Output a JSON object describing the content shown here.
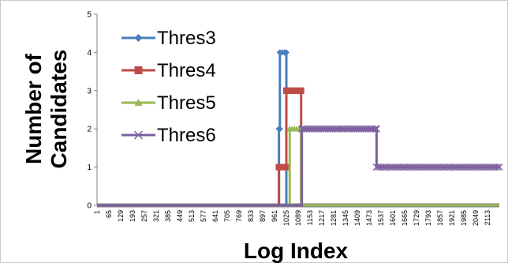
{
  "chart_data": {
    "type": "line",
    "xlabel": "Log Index",
    "ylabel": "Number of Candidates",
    "ylim": [
      0,
      5
    ],
    "xlim": [
      1,
      2177
    ],
    "yticks": [
      0,
      1,
      2,
      3,
      4,
      5
    ],
    "xticks": [
      "1",
      "65",
      "129",
      "193",
      "257",
      "321",
      "385",
      "449",
      "513",
      "577",
      "641",
      "705",
      "769",
      "833",
      "897",
      "961",
      "1025",
      "1089",
      "1153",
      "1217",
      "1281",
      "1345",
      "1409",
      "1473",
      "1537",
      "1601",
      "1665",
      "1729",
      "1793",
      "1857",
      "1921",
      "1985",
      "2049",
      "2113"
    ],
    "grid": false,
    "legend_position": "top-left",
    "series": [
      {
        "name": "Thres3",
        "color": "#4a7ebb",
        "marker": "diamond",
        "steps": [
          [
            1,
            0
          ],
          [
            985,
            0
          ],
          [
            985,
            2
          ],
          [
            990,
            2
          ],
          [
            990,
            4
          ],
          [
            1025,
            4
          ],
          [
            1025,
            0
          ],
          [
            2177,
            0
          ]
        ]
      },
      {
        "name": "Thres4",
        "color": "#be4b48",
        "marker": "square",
        "steps": [
          [
            1,
            0
          ],
          [
            985,
            0
          ],
          [
            985,
            1
          ],
          [
            1025,
            1
          ],
          [
            1025,
            3
          ],
          [
            1105,
            3
          ],
          [
            1105,
            0
          ],
          [
            2177,
            0
          ]
        ]
      },
      {
        "name": "Thres5",
        "color": "#98b954",
        "marker": "triangle",
        "steps": [
          [
            1,
            0
          ],
          [
            1043,
            0
          ],
          [
            1043,
            2
          ],
          [
            1105,
            2
          ],
          [
            1105,
            0
          ],
          [
            2177,
            0
          ]
        ]
      },
      {
        "name": "Thres6",
        "color": "#7d60a0",
        "marker": "x",
        "steps": [
          [
            1,
            0
          ],
          [
            1109,
            0
          ],
          [
            1109,
            2
          ],
          [
            1513,
            2
          ],
          [
            1513,
            1
          ],
          [
            2177,
            1
          ]
        ]
      }
    ]
  }
}
